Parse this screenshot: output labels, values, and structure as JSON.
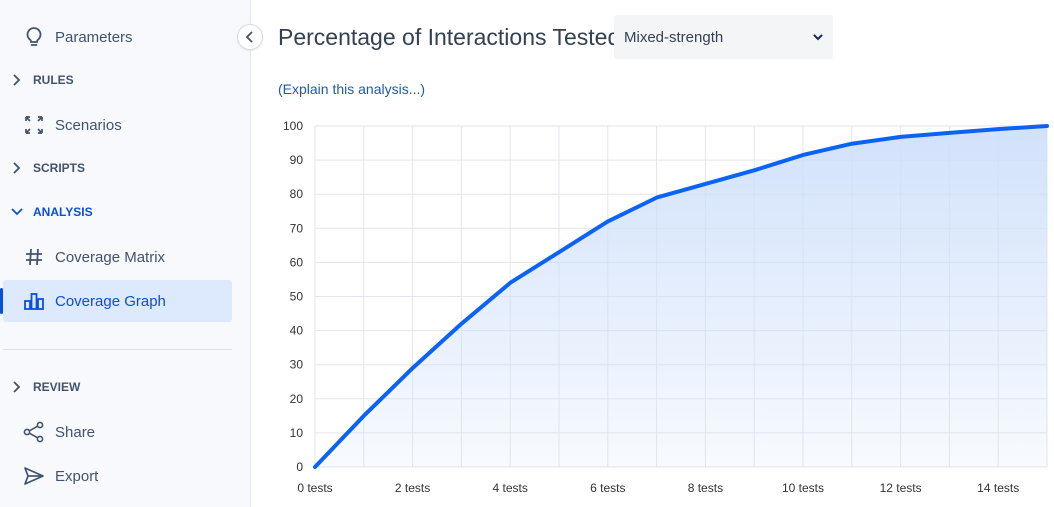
{
  "sidebar": {
    "items": [
      {
        "label": "Parameters",
        "icon": "lightbulb-icon"
      },
      {
        "label": "Scenarios",
        "icon": "expand-arrows-icon"
      },
      {
        "label": "Coverage Matrix",
        "icon": "hash-icon"
      },
      {
        "label": "Coverage Graph",
        "icon": "bar-chart-icon"
      },
      {
        "label": "Share",
        "icon": "share-icon"
      },
      {
        "label": "Export",
        "icon": "send-icon"
      }
    ],
    "sections": {
      "rules": "RULES",
      "scripts": "SCRIPTS",
      "analysis": "ANALYSIS",
      "review": "REVIEW"
    },
    "active_item": "Coverage Graph",
    "accent_color": "#0b4fd6"
  },
  "header": {
    "title": "Percentage of Interactions Tested",
    "strength_select": {
      "value": "Mixed-strength"
    }
  },
  "explain_link": "(Explain this analysis...)",
  "chart_data": {
    "type": "area",
    "x": [
      0,
      1,
      2,
      3,
      4,
      5,
      6,
      7,
      8,
      9,
      10,
      11,
      12,
      13,
      14,
      15
    ],
    "y": [
      0,
      15,
      29,
      42,
      54,
      63,
      72,
      79,
      83,
      87,
      91.5,
      94.8,
      96.8,
      98,
      99.1,
      100
    ],
    "x_tick_values": [
      0,
      2,
      4,
      6,
      8,
      10,
      12,
      14
    ],
    "x_tick_labels": [
      "0 tests",
      "2 tests",
      "4 tests",
      "6 tests",
      "8 tests",
      "10 tests",
      "12 tests",
      "14 tests"
    ],
    "y_ticks": [
      0,
      10,
      20,
      30,
      40,
      50,
      60,
      70,
      80,
      90,
      100
    ],
    "xlim": [
      0,
      15
    ],
    "ylim": [
      0,
      100
    ],
    "grid": true,
    "line_color": "#0b63f6",
    "fill_color": "#cfe0fb"
  }
}
